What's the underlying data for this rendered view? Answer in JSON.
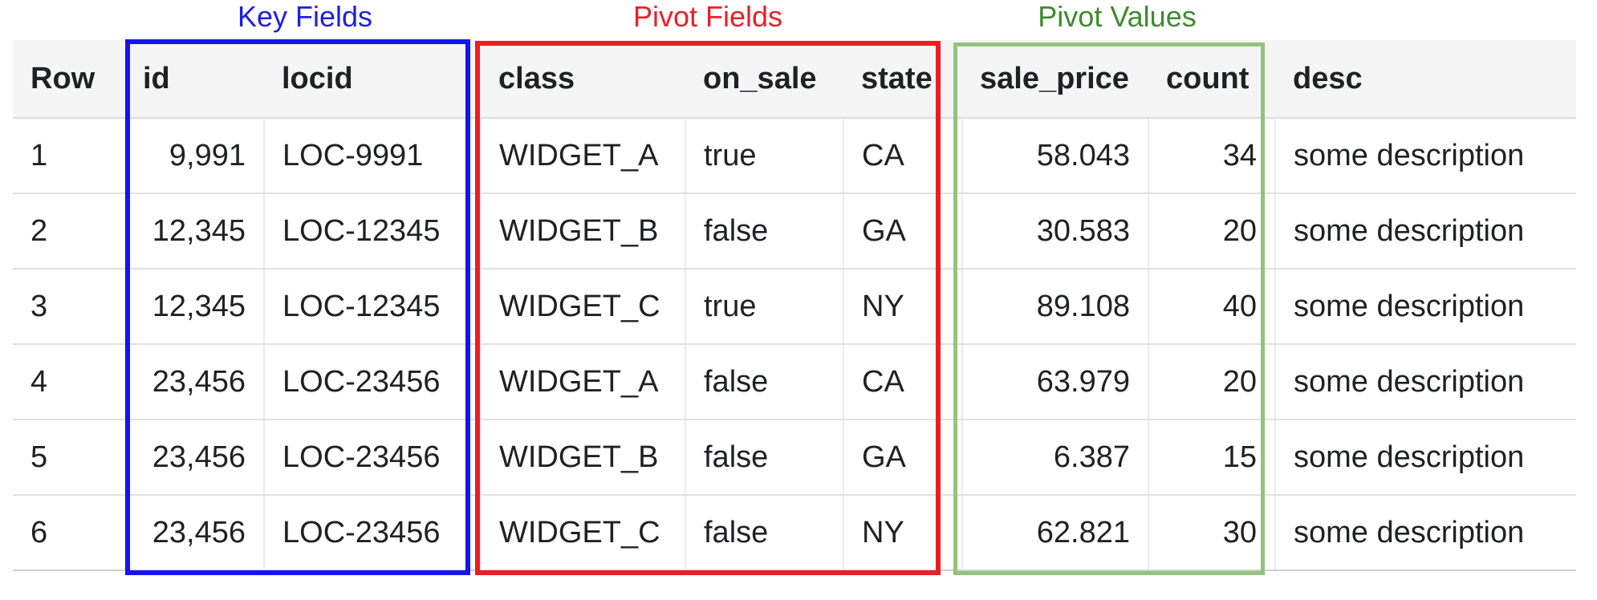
{
  "captions": {
    "key_fields": "Key Fields",
    "pivot_fields": "Pivot Fields",
    "pivot_values": "Pivot Values"
  },
  "colors": {
    "key_fields": "#1414f0",
    "pivot_fields": "#ee1c24",
    "pivot_values": "#93c47d"
  },
  "table": {
    "headers": [
      "Row",
      "id",
      "locid",
      "class",
      "on_sale",
      "state",
      "sale_price",
      "count",
      "desc"
    ],
    "rows": [
      [
        "1",
        "9,991",
        "LOC-9991",
        "WIDGET_A",
        "true",
        "CA",
        "58.043",
        "34",
        "some description"
      ],
      [
        "2",
        "12,345",
        "LOC-12345",
        "WIDGET_B",
        "false",
        "GA",
        "30.583",
        "20",
        "some description"
      ],
      [
        "3",
        "12,345",
        "LOC-12345",
        "WIDGET_C",
        "true",
        "NY",
        "89.108",
        "40",
        "some description"
      ],
      [
        "4",
        "23,456",
        "LOC-23456",
        "WIDGET_A",
        "false",
        "CA",
        "63.979",
        "20",
        "some description"
      ],
      [
        "5",
        "23,456",
        "LOC-23456",
        "WIDGET_B",
        "false",
        "GA",
        "6.387",
        "15",
        "some description"
      ],
      [
        "6",
        "23,456",
        "LOC-23456",
        "WIDGET_C",
        "false",
        "NY",
        "62.821",
        "30",
        "some description"
      ]
    ]
  }
}
